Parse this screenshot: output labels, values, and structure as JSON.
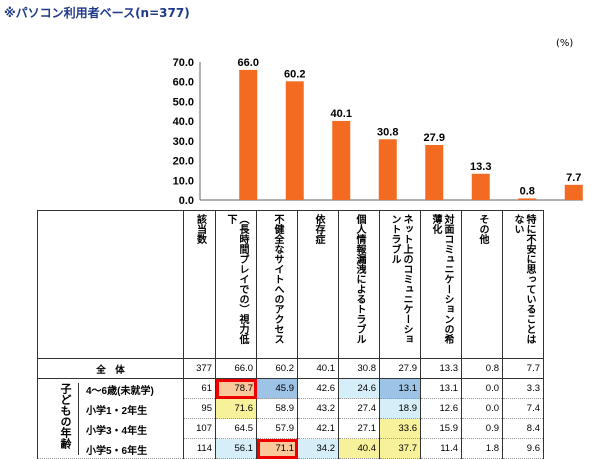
{
  "title": "※パソコン利用者ベース(n=377)",
  "unit": "(%)",
  "chart_data": {
    "type": "bar",
    "categories": [
      "視力低下(長時間プレイでの)",
      "不健全なサイトへのアクセス",
      "依存症",
      "個人情報漏洩によるトラブル",
      "ネット上のコミュニケーショントラブル",
      "対面コミュニケーションの希薄化",
      "その他",
      "特に不安に思っていることはない"
    ],
    "values": [
      66.0,
      60.2,
      40.1,
      30.8,
      27.9,
      13.3,
      0.8,
      7.7
    ],
    "ylim": [
      0,
      70
    ],
    "yticks": [
      "0.0",
      "10.0",
      "20.0",
      "30.0",
      "40.0",
      "50.0",
      "60.0",
      "70.0"
    ],
    "bar_color": "#f26b21"
  },
  "table": {
    "headers": [
      "該当数",
      "︵長時間プレイでの︶視力低下",
      "不健全なサイトへのアクセス",
      "依存症",
      "個人情報漏洩によるトラブル",
      "ネット上のコミュニケーショントラブル",
      "対面コミュニケーションの希薄化",
      "その他",
      "特に不安に思っていることはない"
    ],
    "total": {
      "label": "全　体",
      "values": [
        "377",
        "66.0",
        "60.2",
        "40.1",
        "30.8",
        "27.9",
        "13.3",
        "0.8",
        "7.7"
      ]
    },
    "group_label": "子どもの年齢",
    "rows": [
      {
        "label": "4～6歳(未就学)",
        "values": [
          "61",
          "78.7",
          "45.9",
          "42.6",
          "24.6",
          "13.1",
          "13.1",
          "0.0",
          "3.3"
        ],
        "hl": [
          "",
          "or",
          "bl",
          "",
          "lb",
          "bl",
          "",
          "",
          ""
        ]
      },
      {
        "label": "小学1・2年生",
        "values": [
          "95",
          "71.6",
          "58.9",
          "43.2",
          "27.4",
          "18.9",
          "12.6",
          "0.0",
          "7.4"
        ],
        "hl": [
          "",
          "ye",
          "",
          "",
          "",
          "lb",
          "",
          "",
          ""
        ]
      },
      {
        "label": "小学3・4年生",
        "values": [
          "107",
          "64.5",
          "57.9",
          "42.1",
          "27.1",
          "33.6",
          "15.9",
          "0.9",
          "8.4"
        ],
        "hl": [
          "",
          "",
          "",
          "",
          "",
          "ye",
          "",
          "",
          ""
        ]
      },
      {
        "label": "小学5・6年生",
        "values": [
          "114",
          "56.1",
          "71.1",
          "34.2",
          "40.4",
          "37.7",
          "11.4",
          "1.8",
          "9.6"
        ],
        "hl": [
          "",
          "lb",
          "or",
          "lb",
          "ye",
          "ye",
          "",
          "",
          ""
        ]
      }
    ]
  }
}
